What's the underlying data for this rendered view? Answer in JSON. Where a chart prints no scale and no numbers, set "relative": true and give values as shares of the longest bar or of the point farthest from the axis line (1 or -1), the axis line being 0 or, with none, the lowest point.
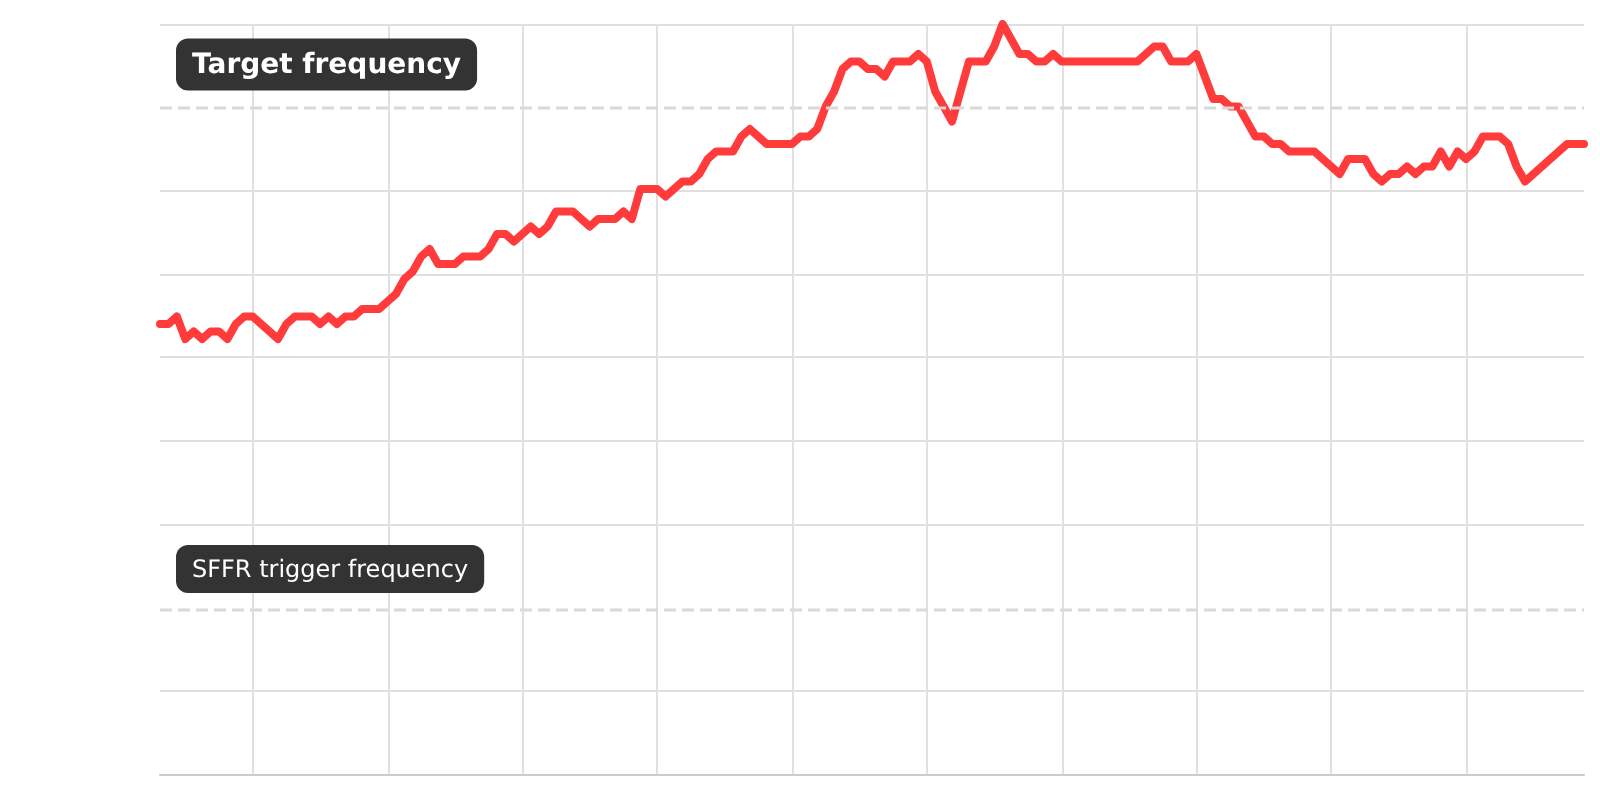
{
  "chart_data": {
    "type": "line",
    "relative": true,
    "grid": true,
    "line_style": "solid",
    "categories": [
      null,
      null,
      null,
      null,
      null,
      null,
      null,
      null,
      null,
      null,
      null,
      null,
      null,
      null,
      null,
      null,
      null,
      null,
      null,
      null,
      null,
      null,
      null,
      null,
      null,
      null,
      null,
      null,
      null,
      null,
      null,
      null,
      null,
      null,
      null,
      null,
      null,
      null,
      null,
      null,
      null,
      null,
      null,
      null,
      null,
      null,
      null,
      null,
      null,
      null,
      null,
      null,
      null,
      null,
      null,
      null,
      null,
      null,
      null,
      null,
      null,
      null,
      null,
      null,
      null,
      null,
      null,
      null,
      null,
      null,
      null,
      null,
      null,
      null,
      null,
      null,
      null,
      null,
      null,
      null,
      null,
      null,
      null,
      null,
      null,
      null,
      null,
      null,
      null,
      null,
      null,
      null,
      null,
      null,
      null,
      null,
      null,
      null,
      null,
      null,
      null,
      null,
      null,
      null,
      null,
      null,
      null,
      null,
      null,
      null,
      null,
      null,
      null,
      null,
      null,
      null,
      null,
      null,
      null,
      null,
      null,
      null,
      null,
      null,
      null,
      null,
      null,
      null,
      null,
      null,
      null,
      null,
      null,
      null,
      null,
      null,
      null,
      null,
      null,
      null,
      null,
      null,
      null,
      null,
      null,
      null,
      null,
      null,
      null,
      null,
      null,
      null,
      null,
      null,
      null,
      null,
      null,
      null,
      null,
      null,
      null,
      null,
      null,
      null,
      null,
      null,
      null,
      null,
      null,
      null
    ],
    "series": [
      {
        "color": "#ff3b3b",
        "values": [
          0.6,
          0.6,
          0.61,
          0.58,
          0.59,
          0.58,
          0.59,
          0.59,
          0.58,
          0.6,
          0.61,
          0.61,
          0.6,
          0.59,
          0.58,
          0.6,
          0.61,
          0.61,
          0.61,
          0.6,
          0.61,
          0.6,
          0.61,
          0.61,
          0.62,
          0.62,
          0.62,
          0.63,
          0.64,
          0.66,
          0.67,
          0.69,
          0.7,
          0.68,
          0.68,
          0.68,
          0.69,
          0.69,
          0.69,
          0.7,
          0.72,
          0.72,
          0.71,
          0.72,
          0.73,
          0.72,
          0.73,
          0.75,
          0.75,
          0.75,
          0.74,
          0.73,
          0.74,
          0.74,
          0.74,
          0.75,
          0.74,
          0.78,
          0.78,
          0.78,
          0.77,
          0.78,
          0.79,
          0.79,
          0.8,
          0.82,
          0.83,
          0.83,
          0.83,
          0.85,
          0.86,
          0.85,
          0.84,
          0.84,
          0.84,
          0.84,
          0.85,
          0.85,
          0.86,
          0.89,
          0.91,
          0.94,
          0.95,
          0.95,
          0.94,
          0.94,
          0.93,
          0.95,
          0.95,
          0.95,
          0.96,
          0.95,
          0.91,
          0.89,
          0.87,
          0.91,
          0.95,
          0.95,
          0.95,
          0.97,
          1.0,
          0.98,
          0.96,
          0.96,
          0.95,
          0.95,
          0.96,
          0.95,
          0.95,
          0.95,
          0.95,
          0.95,
          0.95,
          0.95,
          0.95,
          0.95,
          0.95,
          0.96,
          0.97,
          0.97,
          0.95,
          0.95,
          0.95,
          0.96,
          0.93,
          0.9,
          0.9,
          0.89,
          0.89,
          0.87,
          0.85,
          0.85,
          0.84,
          0.84,
          0.83,
          0.83,
          0.83,
          0.83,
          0.82,
          0.81,
          0.8,
          0.82,
          0.82,
          0.82,
          0.8,
          0.79,
          0.8,
          0.8,
          0.81,
          0.8,
          0.81,
          0.81,
          0.83,
          0.81,
          0.83,
          0.82,
          0.83,
          0.85,
          0.85,
          0.85,
          0.84,
          0.81,
          0.79,
          0.8,
          0.81,
          0.82,
          0.83,
          0.84,
          0.84,
          0.84
        ]
      }
    ],
    "ref_lines": [
      {
        "axis": "y",
        "value": 0.89,
        "label": "Target frequency",
        "color": "#d9d9d9",
        "line_style": "dashed"
      },
      {
        "axis": "y",
        "value": 0.22,
        "label": "SFFR trigger frequency",
        "color": "#d9d9d9",
        "line_style": "dashed"
      }
    ]
  }
}
